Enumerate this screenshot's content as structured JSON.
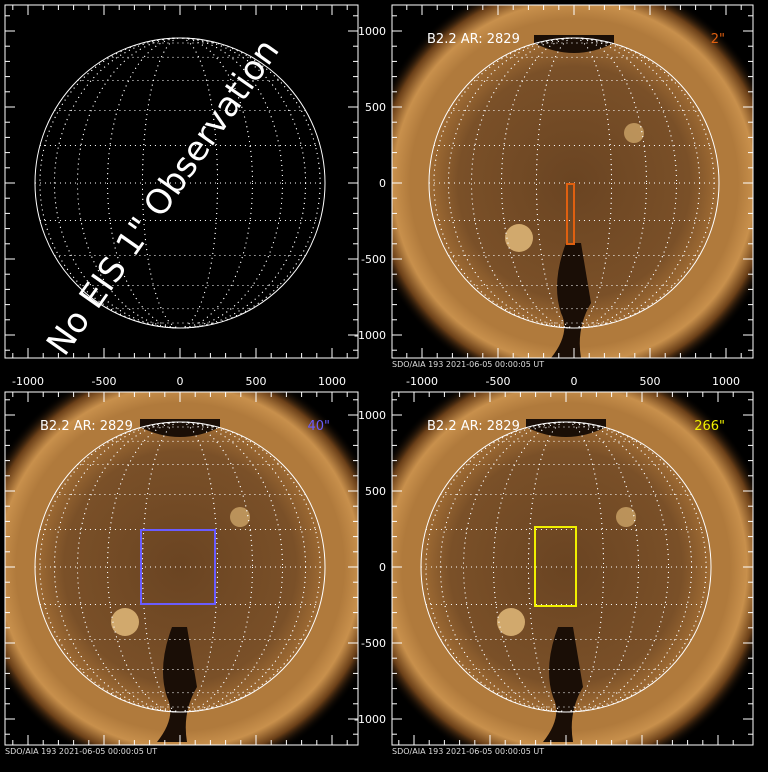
{
  "panels": [
    {
      "label": "",
      "cadence": "",
      "box_color": "",
      "overlay_text": "No EIS 1\" Observation",
      "caption": "",
      "show_sun": false
    },
    {
      "label": "B2.2 AR: 2829",
      "cadence": "2\"",
      "box_color": "#e06010",
      "overlay_text": "",
      "caption": "SDO/AIA 193   2021-06-05 00:00:05 UT",
      "show_sun": true
    },
    {
      "label": "B2.2 AR: 2829",
      "cadence": "40\"",
      "box_color": "#6a5cff",
      "overlay_text": "",
      "caption": "SDO/AIA 193   2021-06-05 00:00:05 UT",
      "show_sun": true
    },
    {
      "label": "B2.2 AR: 2829",
      "cadence": "266\"",
      "box_color": "#f0f000",
      "overlay_text": "",
      "caption": "SDO/AIA 193   2021-06-05 00:00:05 UT",
      "show_sun": true
    }
  ],
  "axes": {
    "x_ticks": [
      "-1000",
      "-500",
      "0",
      "500",
      "1000"
    ],
    "y_ticks": [
      "1000",
      "500",
      "0",
      "-500",
      "-1000"
    ]
  },
  "colors": {
    "frame": "#ffffff",
    "label": "#ffffff"
  }
}
